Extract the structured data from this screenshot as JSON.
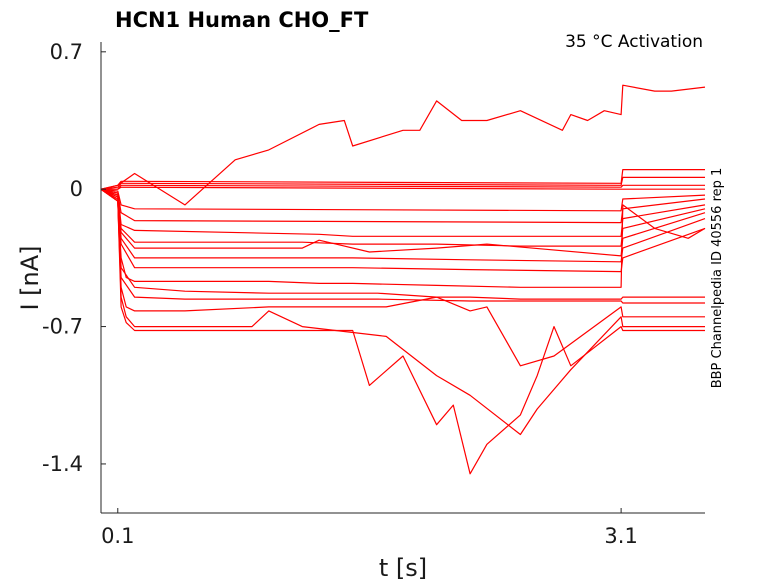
{
  "chart_data": {
    "type": "line",
    "title": "HCN1  Human  CHO_FT",
    "annotation": "35 °C  Activation",
    "side_label": "BBP Channelpedia ID 40556 rep 1",
    "xlabel": "t [s]",
    "ylabel": "I [nA]",
    "xlim": [
      0.0,
      3.6
    ],
    "ylim": [
      -1.65,
      0.75
    ],
    "xticks": [
      {
        "value": 0.1,
        "label": "0.1"
      },
      {
        "value": 3.1,
        "label": "3.1"
      }
    ],
    "yticks": [
      {
        "value": 0.7,
        "label": "0.7"
      },
      {
        "value": 0.0,
        "label": "0"
      },
      {
        "value": -0.7,
        "label": "-0.7"
      },
      {
        "value": -1.4,
        "label": "-1.4"
      }
    ],
    "line_color": "#ff0000",
    "series": [
      {
        "x": [
          0.0,
          0.1,
          0.2,
          0.5,
          0.8,
          1.0,
          1.3,
          1.45,
          1.5,
          1.8,
          1.9,
          2.0,
          2.15,
          2.3,
          2.5,
          2.75,
          2.8,
          2.9,
          3.0,
          3.1,
          3.11,
          3.3,
          3.4,
          3.6
        ],
        "y": [
          0.0,
          0.02,
          0.08,
          -0.08,
          0.15,
          0.2,
          0.33,
          0.35,
          0.22,
          0.3,
          0.3,
          0.45,
          0.35,
          0.35,
          0.4,
          0.3,
          0.38,
          0.35,
          0.4,
          0.38,
          0.53,
          0.5,
          0.5,
          0.52
        ]
      },
      {
        "x": [
          0.0,
          0.1,
          0.12,
          3.1,
          3.11,
          3.6
        ],
        "y": [
          0.0,
          0.02,
          0.04,
          0.03,
          0.1,
          0.1
        ]
      },
      {
        "x": [
          0.0,
          0.1,
          0.12,
          3.1,
          3.11,
          3.6
        ],
        "y": [
          0.0,
          0.01,
          0.03,
          0.02,
          0.06,
          0.06
        ]
      },
      {
        "x": [
          0.0,
          0.1,
          0.12,
          3.1,
          3.11,
          3.6
        ],
        "y": [
          0.0,
          0.0,
          0.02,
          0.01,
          0.02,
          0.02
        ]
      },
      {
        "x": [
          0.0,
          0.1,
          0.12,
          3.1,
          3.11,
          3.6
        ],
        "y": [
          0.0,
          0.0,
          0.01,
          0.0,
          0.0,
          0.0
        ]
      },
      {
        "x": [
          0.0,
          0.1,
          0.12,
          0.2,
          3.1,
          3.11,
          3.6
        ],
        "y": [
          0.0,
          -0.01,
          -0.08,
          -0.1,
          -0.11,
          -0.05,
          -0.03
        ]
      },
      {
        "x": [
          0.0,
          0.1,
          0.12,
          0.2,
          3.1,
          3.11,
          3.6
        ],
        "y": [
          0.0,
          -0.02,
          -0.12,
          -0.16,
          -0.17,
          -0.1,
          -0.05
        ]
      },
      {
        "x": [
          0.0,
          0.1,
          0.12,
          0.2,
          1.3,
          1.5,
          2.5,
          3.1,
          3.11,
          3.6
        ],
        "y": [
          0.0,
          -0.02,
          -0.18,
          -0.21,
          -0.23,
          -0.24,
          -0.24,
          -0.24,
          -0.15,
          -0.08
        ]
      },
      {
        "x": [
          0.0,
          0.1,
          0.12,
          0.2,
          1.2,
          1.5,
          2.0,
          2.5,
          3.1,
          3.11,
          3.6
        ],
        "y": [
          0.0,
          -0.03,
          -0.2,
          -0.27,
          -0.27,
          -0.28,
          -0.28,
          -0.29,
          -0.29,
          -0.2,
          -0.1
        ]
      },
      {
        "x": [
          0.0,
          0.1,
          0.12,
          0.2,
          1.2,
          1.3,
          1.4,
          1.6,
          2.0,
          2.3,
          3.1,
          3.11,
          3.6
        ],
        "y": [
          0.0,
          -0.03,
          -0.22,
          -0.3,
          -0.3,
          -0.26,
          -0.28,
          -0.32,
          -0.3,
          -0.28,
          -0.34,
          -0.25,
          -0.12
        ]
      },
      {
        "x": [
          0.0,
          0.1,
          0.12,
          0.2,
          1.5,
          2.2,
          3.1,
          3.11,
          3.6
        ],
        "y": [
          0.0,
          -0.04,
          -0.25,
          -0.35,
          -0.35,
          -0.36,
          -0.37,
          -0.3,
          -0.15
        ]
      },
      {
        "x": [
          0.0,
          0.1,
          0.12,
          0.2,
          1.5,
          2.2,
          3.1,
          3.11,
          3.6
        ],
        "y": [
          0.0,
          -0.04,
          -0.28,
          -0.4,
          -0.4,
          -0.41,
          -0.42,
          -0.35,
          -0.2
        ]
      },
      {
        "x": [
          0.0,
          0.1,
          0.12,
          0.15,
          0.2,
          1.0,
          1.3,
          1.5,
          2.0,
          2.5,
          3.1,
          3.11,
          3.3,
          3.5,
          3.6
        ],
        "y": [
          0.0,
          -0.05,
          -0.35,
          -0.45,
          -0.47,
          -0.47,
          -0.48,
          -0.48,
          -0.49,
          -0.5,
          -0.5,
          -0.08,
          -0.2,
          -0.25,
          -0.2
        ]
      },
      {
        "x": [
          0.0,
          0.1,
          0.12,
          0.2,
          0.5,
          1.0,
          1.65,
          2.0,
          2.2,
          2.5,
          3.1,
          3.11,
          3.6
        ],
        "y": [
          0.0,
          -0.06,
          -0.4,
          -0.5,
          -0.52,
          -0.53,
          -0.53,
          -0.55,
          -0.55,
          -0.56,
          -0.56,
          -0.55,
          -0.55
        ]
      },
      {
        "x": [
          0.0,
          0.1,
          0.12,
          0.2,
          0.5,
          1.0,
          1.65,
          2.2,
          2.5,
          3.1,
          3.11,
          3.6
        ],
        "y": [
          0.0,
          -0.06,
          -0.45,
          -0.55,
          -0.56,
          -0.56,
          -0.56,
          -0.57,
          -0.57,
          -0.57,
          -0.58,
          -0.58
        ]
      },
      {
        "x": [
          0.0,
          0.1,
          0.12,
          0.15,
          0.2,
          0.5,
          1.0,
          1.2,
          1.7,
          2.0,
          2.2,
          2.3,
          2.5,
          2.7,
          3.1,
          3.11,
          3.6
        ],
        "y": [
          0.0,
          -0.06,
          -0.5,
          -0.6,
          -0.62,
          -0.62,
          -0.6,
          -0.6,
          -0.6,
          -0.55,
          -0.62,
          -0.6,
          -0.9,
          -0.85,
          -0.6,
          -0.65,
          -0.65
        ]
      },
      {
        "x": [
          0.0,
          0.1,
          0.12,
          0.15,
          0.2,
          0.5,
          0.9,
          1.0,
          1.2,
          1.7,
          2.0,
          2.2,
          2.5,
          2.6,
          2.8,
          3.1,
          3.11,
          3.6
        ],
        "y": [
          0.0,
          -0.06,
          -0.55,
          -0.65,
          -0.7,
          -0.7,
          -0.7,
          -0.62,
          -0.7,
          -0.75,
          -0.95,
          -1.05,
          -1.25,
          -1.12,
          -0.92,
          -0.65,
          -0.7,
          -0.7
        ]
      },
      {
        "x": [
          0.0,
          0.1,
          0.12,
          0.15,
          0.2,
          0.5,
          1.0,
          1.5,
          1.6,
          1.8,
          2.0,
          2.1,
          2.2,
          2.3,
          2.5,
          2.6,
          2.7,
          2.8,
          3.1,
          3.11,
          3.6
        ],
        "y": [
          0.0,
          -0.06,
          -0.6,
          -0.68,
          -0.72,
          -0.72,
          -0.72,
          -0.72,
          -1.0,
          -0.85,
          -1.2,
          -1.1,
          -1.45,
          -1.3,
          -1.15,
          -0.95,
          -0.7,
          -0.9,
          -0.7,
          -0.72,
          -0.72
        ]
      }
    ]
  }
}
